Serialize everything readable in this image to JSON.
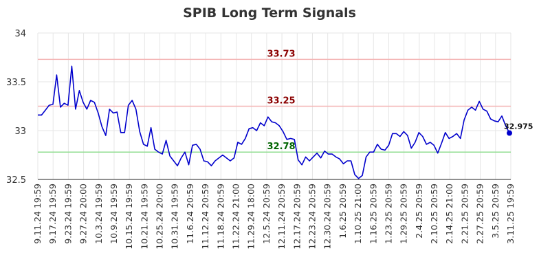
{
  "chart_data": {
    "type": "line",
    "title": "SPIB Long Term Signals",
    "xlabel": "",
    "ylabel": "",
    "ylim": [
      32.5,
      34
    ],
    "yticks": [
      "32.5",
      "33",
      "33.5",
      "34"
    ],
    "xticks": [
      "9.11.24 19:59",
      "9.17.24 19:59",
      "9.23.24 19:59",
      "9.27.24 20:00",
      "10.3.24 19:59",
      "10.9.24 19:59",
      "10.15.24 19:59",
      "10.21.24 19:59",
      "10.25.24 20:00",
      "10.31.24 19:59",
      "11.6.24 20:59",
      "11.12.24 20:59",
      "11.18.24 20:59",
      "11.22.24 21:00",
      "11.29.24 18:00",
      "12.5.24 20:59",
      "12.11.24 20:59",
      "12.17.24 20:59",
      "12.23.24 20:59",
      "12.30.24 20:59",
      "1.6.25 20:59",
      "1.10.25 21:00",
      "1.16.25 20:59",
      "1.23.25 20:59",
      "1.29.25 20:59",
      "2.4.25 20:59",
      "2.10.25 20:59",
      "2.14.25 21:00",
      "2.21.25 20:59",
      "2.27.25 20:59",
      "3.5.25 20:59",
      "3.11.25 19:59"
    ],
    "grid": true,
    "reference_lines": [
      {
        "value": 33.73,
        "label": "33.73",
        "color": "#f4b5b5",
        "label_color": "#8b0000"
      },
      {
        "value": 33.25,
        "label": "33.25",
        "color": "#f4b5b5",
        "label_color": "#8b0000"
      },
      {
        "value": 32.78,
        "label": "32.78",
        "color": "#90dd90",
        "label_color": "#006400"
      }
    ],
    "series": [
      {
        "color": "#0000cc",
        "values": [
          33.16,
          33.16,
          33.21,
          33.26,
          33.27,
          33.57,
          33.24,
          33.28,
          33.26,
          33.66,
          33.22,
          33.41,
          33.29,
          33.22,
          33.31,
          33.29,
          33.18,
          33.04,
          32.95,
          33.22,
          33.18,
          33.19,
          32.98,
          32.98,
          33.26,
          33.31,
          33.22,
          32.99,
          32.86,
          32.84,
          33.03,
          32.81,
          32.78,
          32.76,
          32.9,
          32.74,
          32.69,
          32.64,
          32.72,
          32.78,
          32.65,
          32.85,
          32.86,
          32.81,
          32.69,
          32.68,
          32.64,
          32.69,
          32.72,
          32.75,
          32.72,
          32.69,
          32.72,
          32.88,
          32.86,
          32.92,
          33.02,
          33.03,
          33.0,
          33.08,
          33.05,
          33.14,
          33.09,
          33.08,
          33.05,
          32.99,
          32.91,
          32.92,
          32.91,
          32.7,
          32.65,
          32.73,
          32.69,
          32.73,
          32.77,
          32.72,
          32.79,
          32.76,
          32.76,
          32.73,
          32.71,
          32.66,
          32.69,
          32.69,
          32.55,
          32.51,
          32.54,
          32.73,
          32.78,
          32.78,
          32.86,
          32.81,
          32.8,
          32.85,
          32.97,
          32.97,
          32.94,
          32.99,
          32.95,
          32.82,
          32.88,
          32.98,
          32.94,
          32.86,
          32.88,
          32.85,
          32.77,
          32.87,
          32.98,
          32.92,
          32.94,
          32.97,
          32.92,
          33.11,
          33.21,
          33.24,
          33.21,
          33.3,
          33.22,
          33.2,
          33.12,
          33.1,
          33.09,
          33.15,
          33.05,
          32.975
        ]
      }
    ],
    "last_point_label": "32.975"
  }
}
